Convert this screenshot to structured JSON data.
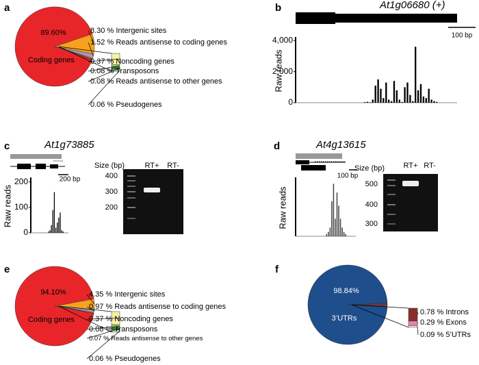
{
  "panel_labels": [
    "a",
    "b",
    "c",
    "d",
    "e",
    "f"
  ],
  "chart_data": [
    {
      "type": "pie",
      "categories": [
        "Coding genes",
        "Intergenic sites",
        "Reads antisense to coding genes",
        "Noncoding genes",
        "Transposons",
        "Reads antisense to other genes",
        "Pseudogenes"
      ],
      "values": [
        89.6,
        8.3,
        1.52,
        0.37,
        0.08,
        0.08,
        0.06
      ],
      "value_labels": [
        "89.60%",
        "8.30 %",
        "1.52 %",
        "0.37 %",
        "0.08 %",
        "0.08 %",
        "0.06 %"
      ],
      "colors": [
        "#e8262a",
        "#f6a21e",
        "#a99bc9",
        "#f6f2a4",
        "#9ccc65",
        "#2e7d32",
        "#c8e6c9"
      ]
    },
    {
      "type": "bar",
      "title": "At1g06680 (+)",
      "ylabel": "Raw reads",
      "scale_label": "100 bp",
      "color": "#000000",
      "values": [
        0,
        40,
        60,
        30,
        200,
        1100,
        1500,
        900,
        300,
        1300,
        200,
        100,
        1400,
        800,
        200,
        50,
        1000,
        1300,
        500,
        100,
        3600,
        800,
        1200,
        400,
        300,
        900,
        200,
        100,
        50,
        0
      ],
      "ylim": [
        0,
        4100
      ],
      "yticks": [
        0,
        {
          "value": 2000,
          "label": "2,000"
        },
        {
          "value": 4000,
          "label": "4,000"
        }
      ]
    },
    {
      "type": "bar",
      "title": "At1g73885",
      "ylabel": "Raw reads",
      "scale_label": "200 bp",
      "color": "#000000",
      "values": [
        0,
        5,
        10,
        30,
        90,
        160,
        20,
        40,
        60,
        80,
        10,
        5,
        0
      ],
      "ylim": [
        0,
        210
      ],
      "yticks": [
        0,
        100,
        200
      ]
    },
    {
      "type": "bar",
      "title": "At4g13615",
      "ylabel": "Raw reads",
      "scale_label": "100 bp",
      "color": "#444444",
      "values": [
        0,
        5,
        10,
        20,
        80,
        120,
        40,
        100,
        70,
        40,
        20,
        10,
        5,
        0,
        0
      ],
      "ylim": [
        0,
        130
      ]
    },
    {
      "type": "pie",
      "categories": [
        "Coding genes",
        "Intergenic sites",
        "Reads antisense to coding genes",
        "Noncoding genes",
        "Transposons",
        "Reads antisense to other genes",
        "Pseudogenes"
      ],
      "values": [
        94.1,
        4.35,
        0.97,
        0.37,
        0.08,
        0.07,
        0.06
      ],
      "value_labels": [
        "94.10%",
        "4.35 %",
        "0.97 %",
        "0.37 %",
        "0.08 %",
        "0.07 %",
        "0.06 %"
      ],
      "colors": [
        "#e8262a",
        "#f6a21e",
        "#a99bc9",
        "#f6f2a4",
        "#9ccc65",
        "#2e7d32",
        "#c8e6c9"
      ]
    },
    {
      "type": "pie",
      "categories": [
        "3’UTRs",
        "Introns",
        "Exons",
        "5’UTRs"
      ],
      "values": [
        98.84,
        0.78,
        0.29,
        0.09
      ],
      "value_labels": [
        "98.84%",
        "0.78 %",
        "0.29 %",
        "0.09 %"
      ],
      "colors": [
        "#1f4e8c",
        "#8b2d2d",
        "#e77fb3",
        "#f4f4f4"
      ]
    }
  ],
  "gels": [
    {
      "size_label": "Size (bp)",
      "ladder": [
        400,
        300,
        200
      ],
      "lanes": [
        "RT+",
        "RT-"
      ]
    },
    {
      "size_label": "Size (bp)",
      "ladder": [
        500,
        400,
        300
      ],
      "lanes": [
        "RT+",
        "RT-"
      ]
    }
  ]
}
